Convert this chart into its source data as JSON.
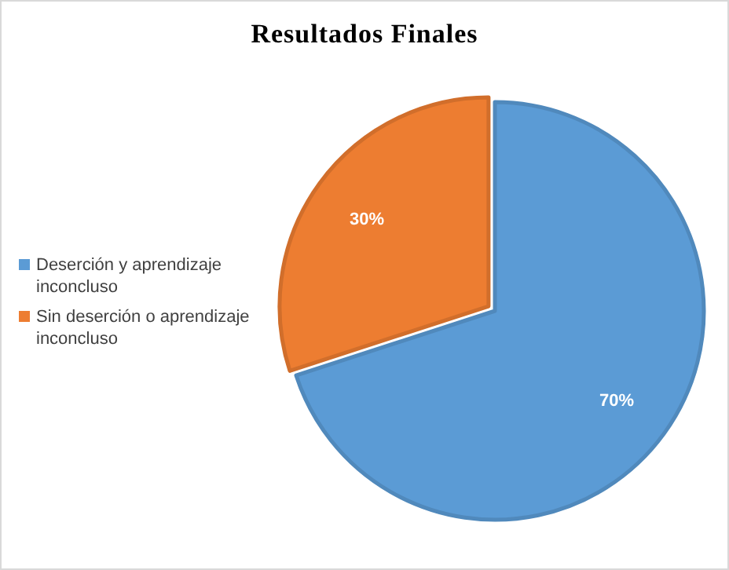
{
  "chart_data": {
    "type": "pie",
    "title": "Resultados Finales",
    "categories": [
      "Deserción y aprendizaje inconcluso",
      "Sin deserción o aprendizaje inconcluso"
    ],
    "values": [
      70,
      30
    ],
    "colors": [
      "#5b9bd5",
      "#ed7d31"
    ],
    "value_labels": [
      "70%",
      "30%"
    ],
    "legend": "left"
  }
}
